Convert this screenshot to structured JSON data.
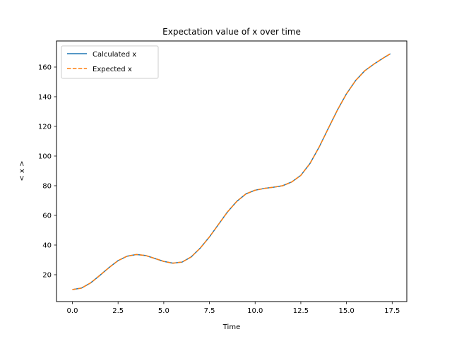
{
  "chart_data": {
    "type": "line",
    "title": "Expectation value of x over time",
    "xlabel": "Time",
    "ylabel": "< x >",
    "xlim": [
      -0.87,
      18.3
    ],
    "ylim": [
      1.9,
      177.6
    ],
    "xticks": [
      0.0,
      2.5,
      5.0,
      7.5,
      10.0,
      12.5,
      15.0,
      17.5
    ],
    "xtick_labels": [
      "0.0",
      "2.5",
      "5.0",
      "7.5",
      "10.0",
      "12.5",
      "15.0",
      "17.5"
    ],
    "yticks": [
      20,
      40,
      60,
      80,
      100,
      120,
      140,
      160
    ],
    "ytick_labels": [
      "20",
      "40",
      "60",
      "80",
      "100",
      "120",
      "140",
      "160"
    ],
    "grid": false,
    "legend_position": "upper-left",
    "series": [
      {
        "name": "Calculated x",
        "color": "#1f77b4",
        "style": "solid",
        "x": [
          0.0,
          0.5,
          1.0,
          1.5,
          2.0,
          2.5,
          3.0,
          3.5,
          4.0,
          4.5,
          5.0,
          5.5,
          6.0,
          6.5,
          7.0,
          7.5,
          8.0,
          8.5,
          9.0,
          9.5,
          10.0,
          10.5,
          11.0,
          11.5,
          12.0,
          12.5,
          13.0,
          13.5,
          14.0,
          14.5,
          15.0,
          15.5,
          16.0,
          16.5,
          17.0,
          17.4
        ],
        "y": [
          10.0,
          11.0,
          14.5,
          19.5,
          24.8,
          29.5,
          32.5,
          33.6,
          33.0,
          31.0,
          29.0,
          27.8,
          28.5,
          32.0,
          38.0,
          45.5,
          54.0,
          62.5,
          69.5,
          74.5,
          77.0,
          78.2,
          79.0,
          80.0,
          82.5,
          87.0,
          95.0,
          106.0,
          118.5,
          131.0,
          142.0,
          151.0,
          157.5,
          162.0,
          166.0,
          169.0
        ]
      },
      {
        "name": "Expected x",
        "color": "#ff7f0e",
        "style": "dashed",
        "x": [
          0.0,
          0.5,
          1.0,
          1.5,
          2.0,
          2.5,
          3.0,
          3.5,
          4.0,
          4.5,
          5.0,
          5.5,
          6.0,
          6.5,
          7.0,
          7.5,
          8.0,
          8.5,
          9.0,
          9.5,
          10.0,
          10.5,
          11.0,
          11.5,
          12.0,
          12.5,
          13.0,
          13.5,
          14.0,
          14.5,
          15.0,
          15.5,
          16.0,
          16.5,
          17.0,
          17.4
        ],
        "y": [
          10.0,
          11.0,
          14.5,
          19.5,
          24.8,
          29.5,
          32.5,
          33.6,
          33.0,
          31.0,
          29.0,
          27.8,
          28.5,
          32.0,
          38.0,
          45.5,
          54.0,
          62.5,
          69.5,
          74.5,
          77.0,
          78.2,
          79.0,
          80.0,
          82.5,
          87.0,
          95.0,
          106.0,
          118.5,
          131.0,
          142.0,
          151.0,
          157.5,
          162.0,
          166.0,
          169.0
        ]
      }
    ]
  }
}
